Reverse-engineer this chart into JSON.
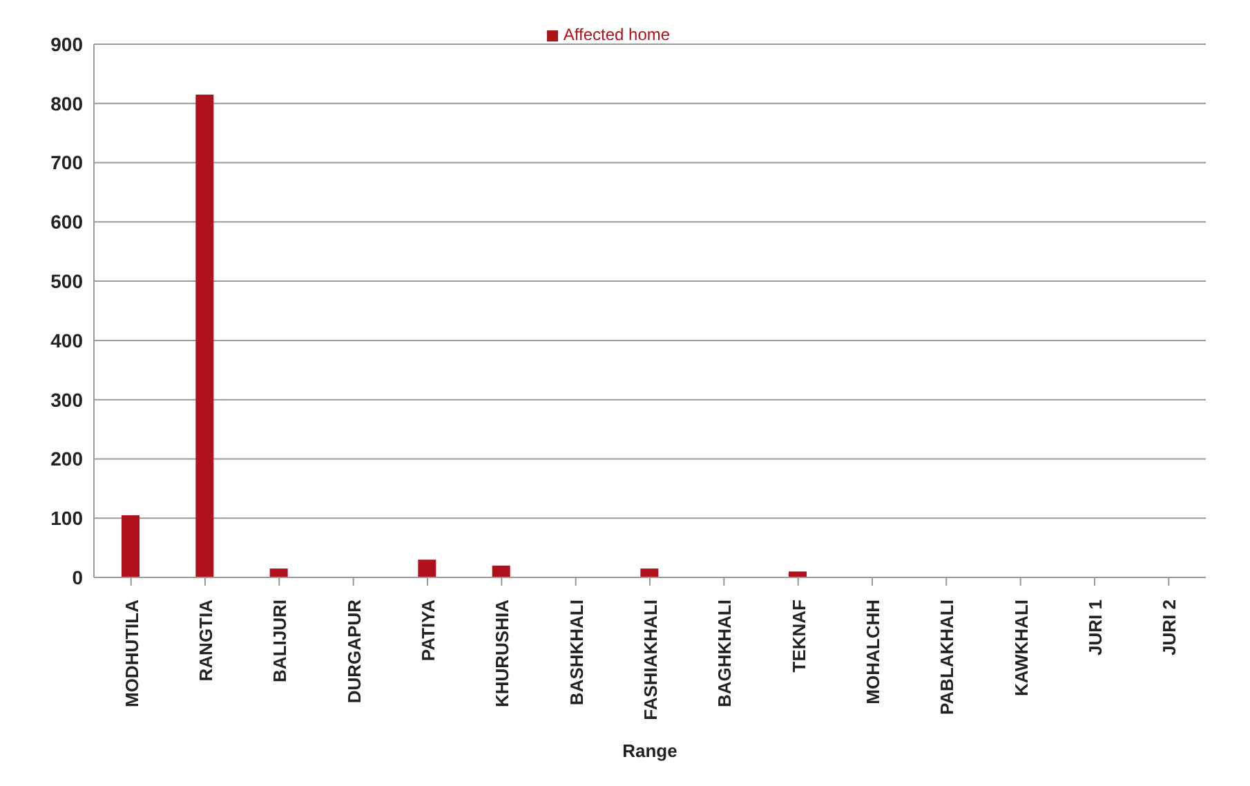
{
  "chart_data": {
    "type": "bar",
    "xlabel": "Range",
    "categories": [
      "MODHUTILA",
      "RANGTIA",
      "BALIJURI",
      "DURGAPUR",
      "PATIYA",
      "KHURUSHIA",
      "BASHKHALI",
      "FASHIAKHALI",
      "BAGHKHALI",
      "TEKNAF",
      "MOHALCHH",
      "PABLAKHALI",
      "KAWKHALI",
      "JURI 1",
      "JURI 2"
    ],
    "series": [
      {
        "name": "Affected home",
        "color": "#b0121b",
        "values": [
          105,
          815,
          15,
          0,
          30,
          20,
          0,
          15,
          0,
          10,
          0,
          0,
          0,
          0,
          0
        ]
      }
    ],
    "ylim": [
      0,
      900
    ],
    "yticks": [
      0,
      100,
      200,
      300,
      400,
      500,
      600,
      700,
      800,
      900
    ],
    "grid": "y",
    "legend": "top"
  }
}
